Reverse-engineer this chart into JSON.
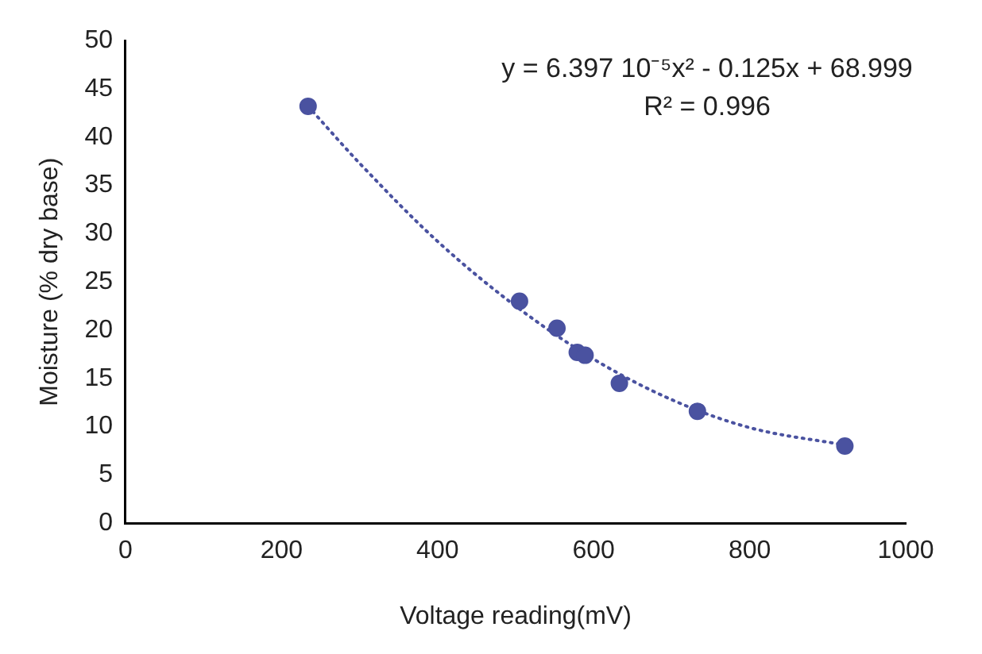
{
  "chart_data": {
    "type": "scatter",
    "xlabel": "Voltage reading(mV)",
    "ylabel": "Moisture (% dry base)",
    "annotations": [
      "y = 6.397 10⁻⁵x² - 0.125x + 68.999",
      "R² = 0.996"
    ],
    "series": [
      {
        "color": "#4a52a0",
        "marker": "circle",
        "x": [
          234,
          505,
          553,
          579,
          589,
          633,
          733,
          922
        ],
        "values": [
          43.2,
          23,
          20.2,
          17.7,
          17.4,
          14.5,
          11.6,
          8.0
        ]
      },
      {
        "type": "line",
        "color": "#4a52a0",
        "marker": "none",
        "line_style": "dotted",
        "x": [
          234,
          300,
          400,
          500,
          600,
          700,
          800,
          922
        ],
        "values": [
          43.2,
          37.3,
          29.2,
          22.5,
          17.0,
          12.8,
          9.9,
          8.1
        ]
      }
    ],
    "xlim": [
      0,
      1000
    ],
    "xticks": [
      0,
      200,
      400,
      600,
      800,
      1000
    ],
    "ylim": [
      0,
      50
    ],
    "yticks": [
      0,
      5,
      10,
      15,
      20,
      25,
      30,
      35,
      40,
      45,
      50
    ],
    "grid": false,
    "legend": false
  }
}
